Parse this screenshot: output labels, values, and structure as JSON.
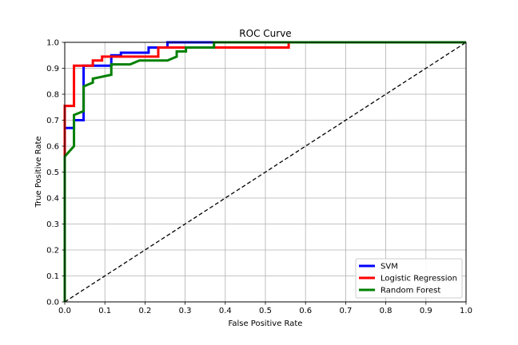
{
  "chart_data": {
    "type": "line",
    "title": "ROC Curve",
    "xlabel": "False Positive Rate",
    "ylabel": "True Positive Rate",
    "xlim": [
      0.0,
      1.0
    ],
    "ylim": [
      0.0,
      1.0
    ],
    "xticks": [
      "0.0",
      "0.1",
      "0.2",
      "0.3",
      "0.4",
      "0.5",
      "0.6",
      "0.7",
      "0.8",
      "0.9",
      "1.0"
    ],
    "yticks": [
      "0.0",
      "0.1",
      "0.2",
      "0.3",
      "0.4",
      "0.5",
      "0.6",
      "0.7",
      "0.8",
      "0.9",
      "1.0"
    ],
    "grid": true,
    "legend_position": "lower-right",
    "reference_line": {
      "x": [
        0,
        1
      ],
      "y": [
        0,
        1
      ],
      "style": "dashed",
      "color": "#000000"
    },
    "series": [
      {
        "name": "SVM",
        "color": "#0000ff",
        "x": [
          0.0,
          0.0,
          0.0,
          0.023,
          0.023,
          0.047,
          0.047,
          0.116,
          0.116,
          0.14,
          0.14,
          0.209,
          0.209,
          0.256,
          0.256,
          0.372,
          0.372,
          1.0
        ],
        "y": [
          0.0,
          0.58,
          0.67,
          0.67,
          0.7,
          0.7,
          0.91,
          0.91,
          0.95,
          0.95,
          0.96,
          0.96,
          0.98,
          0.98,
          1.0,
          1.0,
          1.0,
          1.0
        ]
      },
      {
        "name": "Logistic Regression",
        "color": "#ff0000",
        "x": [
          0.0,
          0.0,
          0.0,
          0.023,
          0.023,
          0.07,
          0.07,
          0.093,
          0.093,
          0.233,
          0.233,
          0.558,
          0.558,
          1.0
        ],
        "y": [
          0.0,
          0.58,
          0.755,
          0.755,
          0.91,
          0.91,
          0.93,
          0.93,
          0.945,
          0.945,
          0.98,
          0.98,
          1.0,
          1.0
        ]
      },
      {
        "name": "Random Forest",
        "color": "#008000",
        "x": [
          0.0,
          0.0,
          0.023,
          0.023,
          0.047,
          0.047,
          0.07,
          0.07,
          0.116,
          0.116,
          0.163,
          0.186,
          0.256,
          0.279,
          0.279,
          0.302,
          0.302,
          0.372,
          0.372,
          1.0
        ],
        "y": [
          0.0,
          0.56,
          0.6,
          0.72,
          0.735,
          0.83,
          0.845,
          0.86,
          0.875,
          0.915,
          0.915,
          0.93,
          0.93,
          0.945,
          0.965,
          0.965,
          0.98,
          0.98,
          1.0,
          1.0
        ]
      }
    ]
  }
}
